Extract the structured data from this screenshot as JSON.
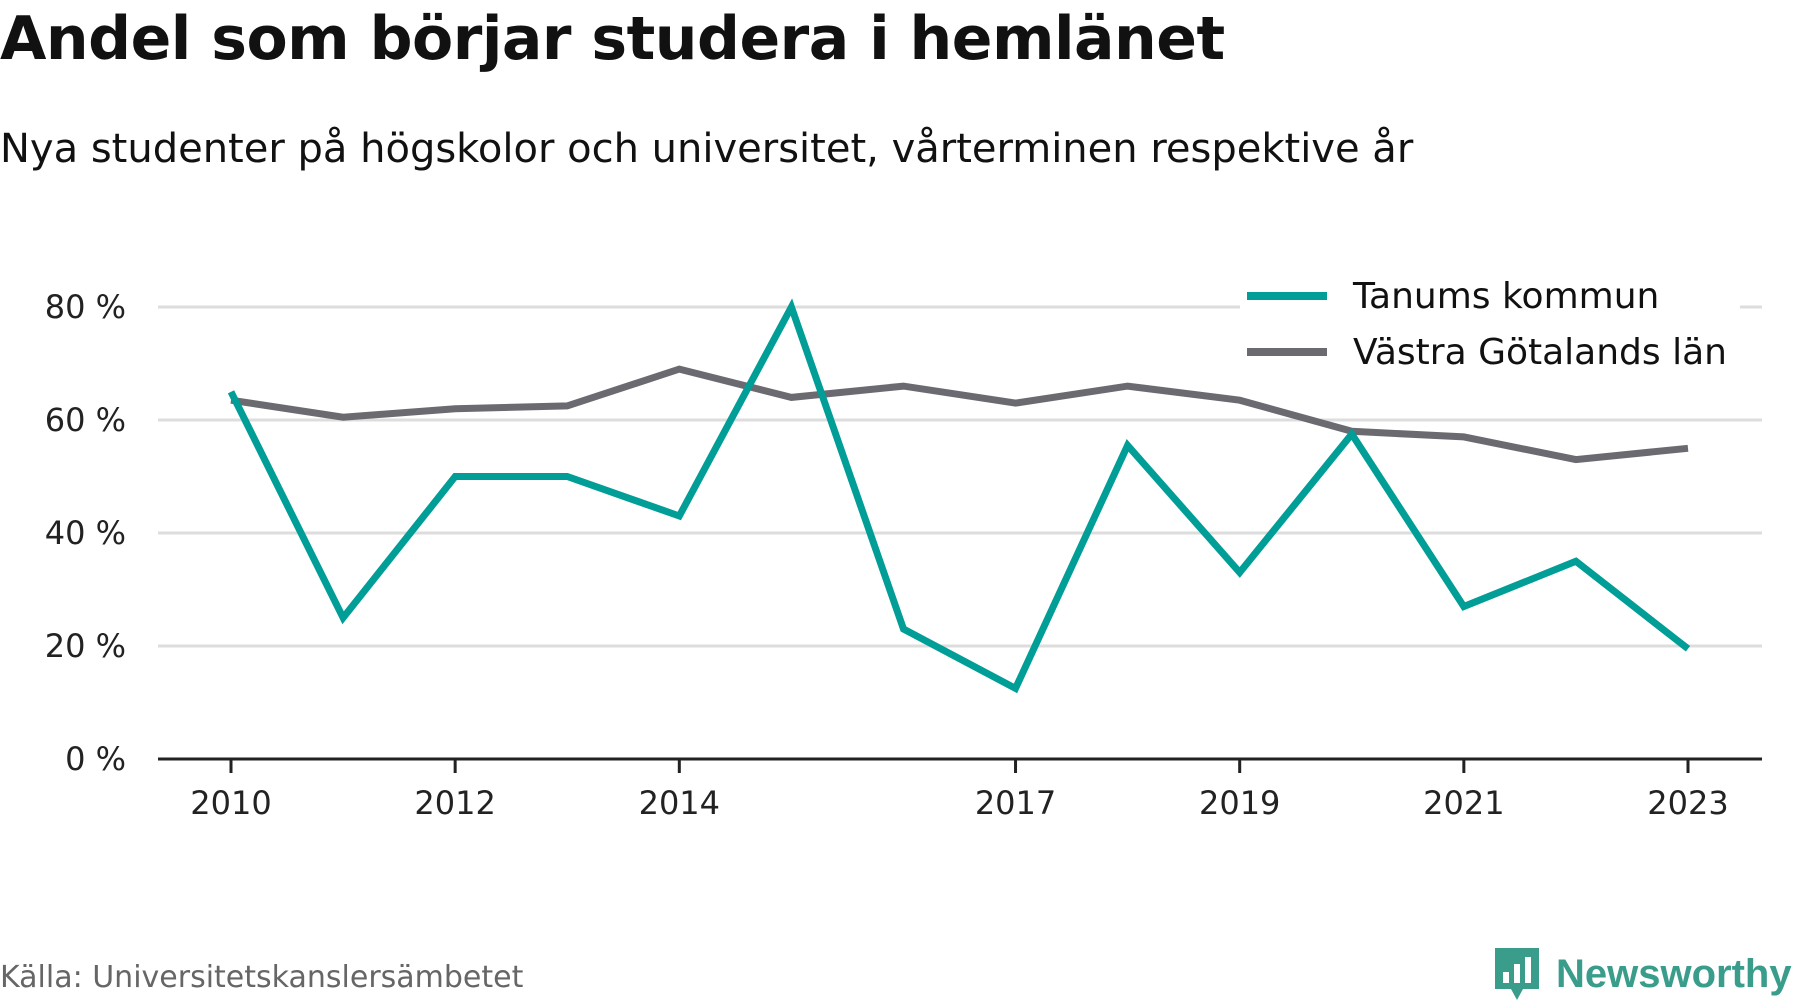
{
  "title": "Andel som börjar studera i hemlänet",
  "subtitle": "Nya studenter på högskolor och universitet, vårterminen respektive år",
  "source": "Källa: Universitetskanslersämbetet",
  "brand": "Newsworthy",
  "colors": {
    "tanum": "#009e96",
    "vg": "#6b6a70",
    "grid": "#dddddd",
    "axis": "#222222",
    "brand": "#3a9d8c"
  },
  "chart_data": {
    "type": "line",
    "x": [
      2010,
      2011,
      2012,
      2013,
      2014,
      2015,
      2016,
      2017,
      2018,
      2019,
      2020,
      2021,
      2022,
      2023
    ],
    "x_tick_labels": [
      "2010",
      "2012",
      "2014",
      "2017",
      "2019",
      "2021",
      "2023"
    ],
    "y_ticks": [
      0,
      20,
      40,
      60,
      80
    ],
    "y_tick_labels": [
      "0 %",
      "20 %",
      "40 %",
      "60 %",
      "80 %"
    ],
    "ylim": [
      0,
      80
    ],
    "xlim": [
      2010,
      2023
    ],
    "grid": true,
    "legend_position": "top-right",
    "series": [
      {
        "name": "Tanums kommun",
        "color": "#009e96",
        "values": [
          65,
          25,
          50,
          50,
          43,
          80,
          23,
          12.5,
          55.5,
          33,
          57.5,
          27,
          35,
          19.5
        ]
      },
      {
        "name": "Västra Götalands län",
        "color": "#6b6a70",
        "values": [
          63.5,
          60.5,
          62,
          62.5,
          69,
          64,
          66,
          63,
          66,
          63.5,
          58,
          57,
          53,
          55
        ]
      }
    ]
  }
}
